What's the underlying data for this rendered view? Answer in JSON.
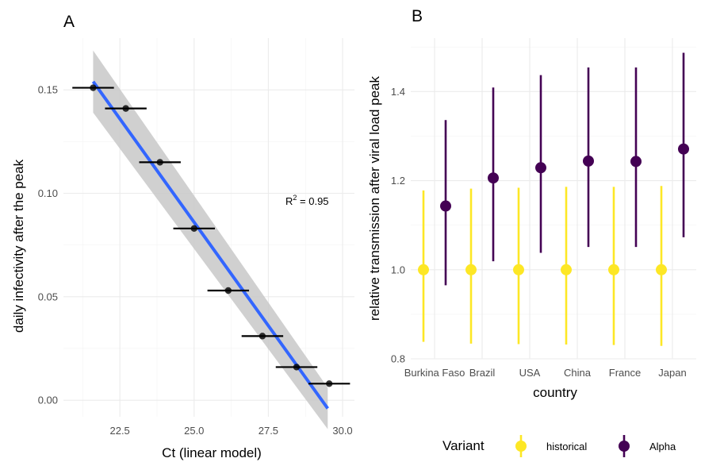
{
  "chart_data": [
    {
      "panel_tag": "A",
      "type": "scatter",
      "xlabel": "Ct (linear model)",
      "ylabel": "daily infectivity after the peak",
      "xlim": [
        20.6,
        30.4
      ],
      "ylim": [
        -0.008,
        0.175
      ],
      "x_ticks": [
        22.5,
        25.0,
        27.5,
        30.0
      ],
      "x_tick_labels": [
        "22.5",
        "25.0",
        "27.5",
        "30.0"
      ],
      "y_ticks": [
        0.0,
        0.05,
        0.1,
        0.15
      ],
      "y_tick_labels": [
        "0.00",
        "0.05",
        "0.10",
        "0.15"
      ],
      "grid": true,
      "annotation": {
        "text": "R",
        "sup": "2",
        "rest": " = 0.95"
      },
      "points": [
        {
          "x": 21.6,
          "y": 0.151,
          "xmin": 20.9,
          "xmax": 22.3
        },
        {
          "x": 22.7,
          "y": 0.141,
          "xmin": 22.0,
          "xmax": 23.4
        },
        {
          "x": 23.85,
          "y": 0.115,
          "xmin": 23.15,
          "xmax": 24.55
        },
        {
          "x": 25.0,
          "y": 0.083,
          "xmin": 24.3,
          "xmax": 25.7
        },
        {
          "x": 26.15,
          "y": 0.053,
          "xmin": 25.45,
          "xmax": 26.85
        },
        {
          "x": 27.3,
          "y": 0.031,
          "xmin": 26.6,
          "xmax": 28.0
        },
        {
          "x": 28.45,
          "y": 0.016,
          "xmin": 27.75,
          "xmax": 29.15
        },
        {
          "x": 29.55,
          "y": 0.008,
          "xmin": 28.85,
          "xmax": 30.25
        }
      ],
      "fit": {
        "x_range": [
          21.6,
          29.5
        ],
        "line_y": [
          0.154,
          -0.004
        ],
        "ribbon_upper": [
          0.169,
          0.006
        ],
        "ribbon_lower": [
          0.139,
          -0.014
        ],
        "line_color": "#3366FF",
        "ribbon_color": "#c8c8c8"
      }
    },
    {
      "panel_tag": "B",
      "type": "scatter",
      "xlabel": "country",
      "ylabel": "relative transmission after viral load peak",
      "ylim": [
        0.8,
        1.52
      ],
      "y_ticks": [
        0.8,
        1.0,
        1.2,
        1.4
      ],
      "y_tick_labels": [
        "0.8",
        "1.0",
        "1.2",
        "1.4"
      ],
      "grid": true,
      "categories": [
        "Burkina Faso",
        "Brazil",
        "USA",
        "China",
        "France",
        "Japan"
      ],
      "series": [
        {
          "name": "historical",
          "color": "#FDE725",
          "values": [
            1.0,
            1.0,
            1.0,
            1.0,
            1.0,
            1.0
          ],
          "lower": [
            0.838,
            0.834,
            0.833,
            0.832,
            0.831,
            0.829
          ],
          "upper": [
            1.178,
            1.182,
            1.184,
            1.186,
            1.186,
            1.188
          ]
        },
        {
          "name": "Alpha",
          "color": "#440154",
          "values": [
            1.143,
            1.206,
            1.229,
            1.244,
            1.243,
            1.271
          ],
          "lower": [
            0.965,
            1.019,
            1.038,
            1.051,
            1.051,
            1.073
          ],
          "upper": [
            1.336,
            1.409,
            1.437,
            1.454,
            1.454,
            1.487
          ]
        }
      ],
      "legend": {
        "title": "Variant",
        "position": "bottom"
      }
    }
  ]
}
